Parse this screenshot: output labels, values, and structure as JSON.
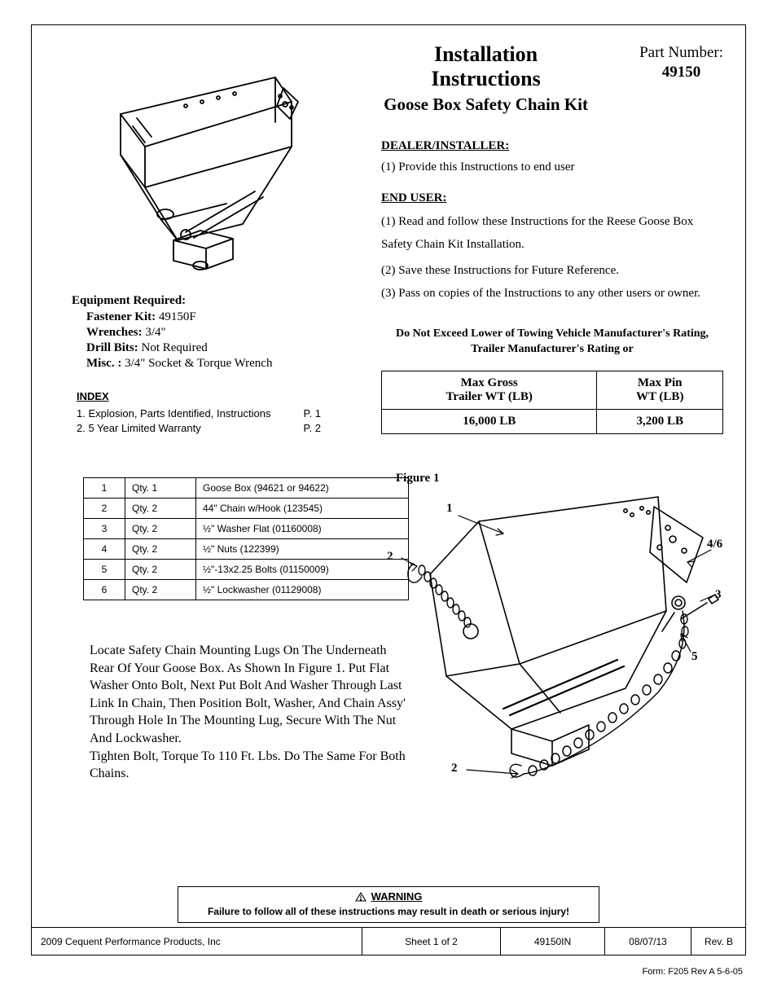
{
  "title1": "Installation Instructions",
  "title2": "Goose Box Safety Chain Kit",
  "partNumberLabel": "Part Number:",
  "partNumber": "49150",
  "dealerLabel": "DEALER/INSTALLER:",
  "dealerSteps": [
    "(1)  Provide this Instructions to end user"
  ],
  "endUserLabel": "END USER:",
  "endUserSteps": [
    "(1) Read and follow these Instructions for the Reese Goose Box Safety Chain Kit Installation.",
    "(2) Save these Instructions for Future Reference.",
    "(3) Pass on copies of the Instructions to any other users or owner."
  ],
  "note": "Do Not Exceed Lower of Towing Vehicle Manufacturer's Rating, Trailer Manufacturer's Rating or",
  "weightHeaders": [
    "Max Gross\nTrailer WT (LB)",
    "Max Pin\nWT (LB)"
  ],
  "weightValues": [
    "16,000 LB",
    "3,200 LB"
  ],
  "equipTitle": "Equipment Required:",
  "equipLines": [
    {
      "label": "Fastener Kit:",
      "value": " 49150F"
    },
    {
      "label": "Wrenches:",
      "value": " 3/4\""
    },
    {
      "label": "Drill Bits:",
      "value": "  Not Required"
    },
    {
      "label": "Misc. :",
      "value": "  3/4\" Socket & Torque Wrench"
    }
  ],
  "indexTitle": "INDEX",
  "indexLines": [
    {
      "left": "1.  Explosion, Parts Identified, Instructions",
      "right": "P. 1"
    },
    {
      "left": "2.  5 Year Limited Warranty",
      "right": "P. 2"
    }
  ],
  "partsRows": [
    [
      "1",
      "Qty. 1",
      "Goose Box (94621 or 94622)"
    ],
    [
      "2",
      "Qty. 2",
      "44\" Chain w/Hook (123545)"
    ],
    [
      "3",
      "Qty. 2",
      "½\" Washer Flat (01160008)"
    ],
    [
      "4",
      "Qty. 2",
      "½\" Nuts (122399)"
    ],
    [
      "5",
      "Qty. 2",
      "½\"-13x2.25 Bolts (01150009)"
    ],
    [
      "6",
      "Qty. 2",
      "½\" Lockwasher (01129008)"
    ]
  ],
  "instructions": "Locate Safety Chain Mounting Lugs On The Underneath Rear Of Your Goose Box.  As Shown In Figure 1.  Put Flat Washer Onto Bolt, Next Put Bolt And Washer Through Last Link In Chain, Then Position Bolt, Washer, And Chain Assy' Through Hole In The Mounting Lug, Secure With The Nut And Lockwasher.\nTighten Bolt, Torque To 110 Ft. Lbs.  Do The Same For Both Chains.",
  "figureLabel": "Figure 1",
  "callouts": {
    "c1": "1",
    "c2a": "2",
    "c2b": "2",
    "c3": "3",
    "c46": "4/6",
    "c5": "5"
  },
  "warningHead": "WARNING",
  "warningBody": "Failure to follow all of these instructions may result in death or serious injury!",
  "footer": {
    "copyright": "2009 Cequent Performance Products, Inc",
    "sheet": "Sheet  1  of   2",
    "doc": "49150IN",
    "date": "08/07/13",
    "rev": "Rev. B"
  },
  "formNote": "Form: F205 Rev A  5-6-05"
}
